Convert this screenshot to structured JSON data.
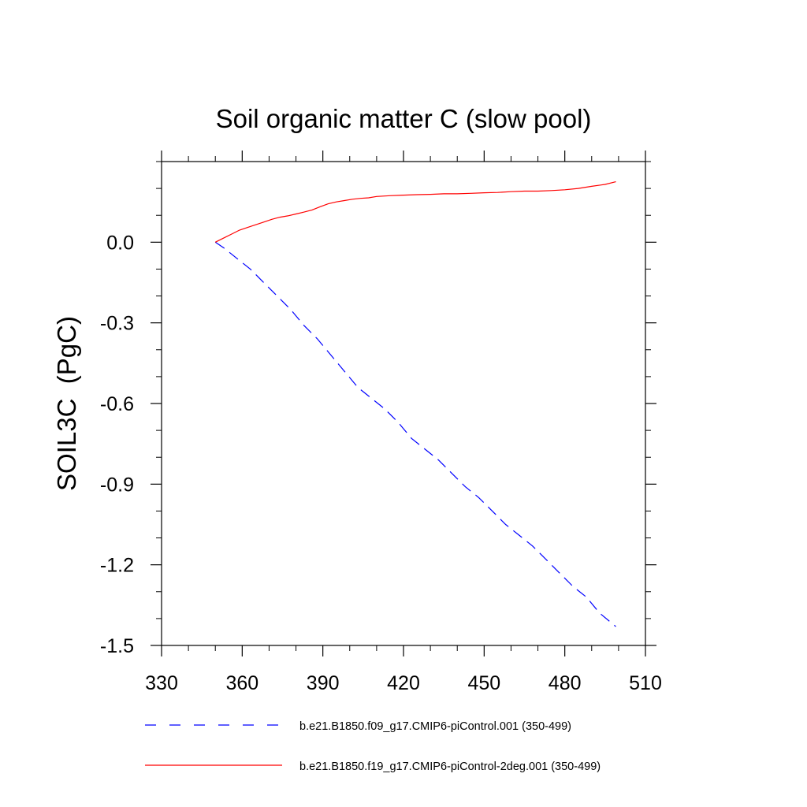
{
  "chart_data": {
    "type": "line",
    "title": "Soil organic matter C (slow pool)",
    "xlabel": "",
    "ylabel": "SOIL3C  (PgC)",
    "xlim": [
      330,
      510
    ],
    "ylim": [
      -1.5,
      0.3
    ],
    "xticks": [
      330,
      360,
      390,
      420,
      450,
      480,
      510
    ],
    "xtick_labels": [
      "330",
      "360",
      "390",
      "420",
      "450",
      "480",
      "510"
    ],
    "yticks": [
      -1.5,
      -1.2,
      -0.9,
      -0.6,
      -0.3,
      0.0
    ],
    "ytick_labels": [
      "-1.5",
      "-1.2",
      "-0.9",
      "-0.6",
      "-0.3",
      "0.0"
    ],
    "legend_position": "bottom",
    "series": [
      {
        "name": "b.e21.B1850.f09_g17.CMIP6-piControl.001 (350-499)",
        "color": "#0000ff",
        "style": "dashed",
        "x": [
          350,
          353,
          358,
          363,
          368,
          373,
          378,
          383,
          388,
          393,
          398,
          403,
          408,
          413,
          418,
          423,
          428,
          433,
          438,
          443,
          448,
          453,
          458,
          463,
          468,
          473,
          478,
          483,
          488,
          493,
          499
        ],
        "y": [
          0.0,
          -0.02,
          -0.06,
          -0.1,
          -0.15,
          -0.2,
          -0.25,
          -0.31,
          -0.36,
          -0.42,
          -0.48,
          -0.54,
          -0.58,
          -0.62,
          -0.67,
          -0.73,
          -0.77,
          -0.81,
          -0.86,
          -0.91,
          -0.95,
          -1.0,
          -1.05,
          -1.09,
          -1.13,
          -1.18,
          -1.23,
          -1.28,
          -1.32,
          -1.38,
          -1.43
        ]
      },
      {
        "name": "b.e21.B1850.f19_g17.CMIP6-piControl-2deg.001 (350-499)",
        "color": "#ff0000",
        "style": "solid",
        "x": [
          350,
          353,
          356,
          359,
          362,
          365,
          368,
          371,
          374,
          377,
          380,
          383,
          386,
          389,
          392,
          395,
          398,
          401,
          404,
          407,
          410,
          415,
          420,
          425,
          430,
          435,
          440,
          445,
          450,
          455,
          460,
          465,
          470,
          475,
          480,
          485,
          490,
          495,
          499
        ],
        "y": [
          0.0,
          0.015,
          0.03,
          0.045,
          0.055,
          0.065,
          0.075,
          0.085,
          0.093,
          0.098,
          0.105,
          0.112,
          0.12,
          0.132,
          0.143,
          0.15,
          0.155,
          0.16,
          0.163,
          0.165,
          0.17,
          0.173,
          0.175,
          0.177,
          0.178,
          0.18,
          0.18,
          0.182,
          0.184,
          0.185,
          0.188,
          0.19,
          0.19,
          0.192,
          0.195,
          0.2,
          0.208,
          0.215,
          0.225
        ]
      }
    ]
  }
}
